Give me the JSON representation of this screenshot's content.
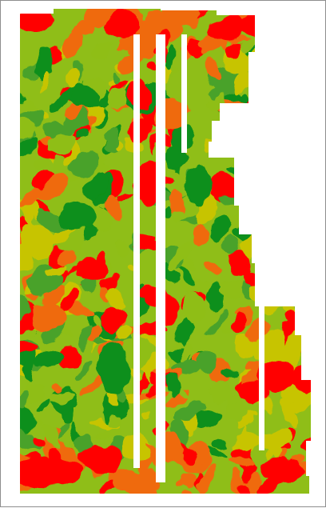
{
  "map": {
    "legend_colors": {
      "low": "#ff0000",
      "low_mid": "#ef6a10",
      "mid": "#c7c400",
      "mid_high": "#8fbe18",
      "high_mid": "#4aa22a",
      "high": "#108f1a"
    },
    "background_color": "#ffffff",
    "strip_color": "#ffffff",
    "frame_color": "#8e8e8e"
  }
}
